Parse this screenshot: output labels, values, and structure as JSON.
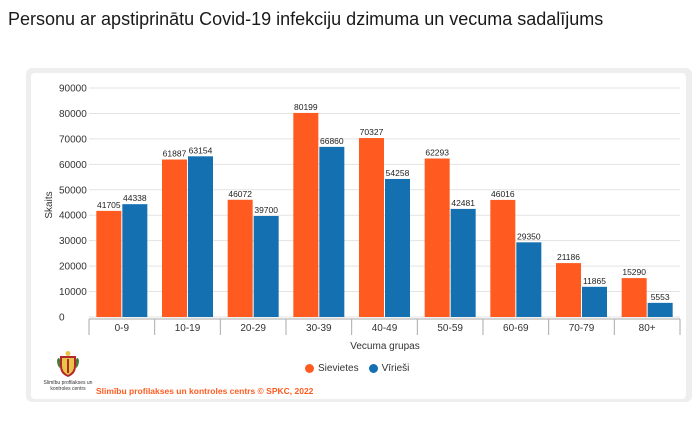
{
  "page": {
    "title": "Personu ar apstiprinātu Covid-19 infekciju dzimuma un vecuma sadalījums"
  },
  "footer": {
    "credit": "Slimību profilakses un kontroles centrs © SPKC, 2022",
    "logo_text": "Slimību profilakses un kontroles centrs",
    "logo_icon": "spkc-coat-of-arms-icon"
  },
  "chart_data": {
    "type": "bar",
    "xlabel": "Vecuma grupas",
    "ylabel": "Skaits",
    "ylim": [
      0,
      90000
    ],
    "yticks": [
      0,
      10000,
      20000,
      30000,
      40000,
      50000,
      60000,
      70000,
      80000,
      90000
    ],
    "grid": true,
    "legend_position": "bottom",
    "categories": [
      "0-9",
      "10-19",
      "20-29",
      "30-39",
      "40-49",
      "50-59",
      "60-69",
      "70-79",
      "80+"
    ],
    "series": [
      {
        "name": "Sievietes",
        "color": "#ff5a1f",
        "values": [
          41705,
          61887,
          46072,
          80199,
          70327,
          62293,
          46016,
          21186,
          15290
        ]
      },
      {
        "name": "Vīrieši",
        "color": "#1470b0",
        "values": [
          44338,
          63154,
          39700,
          66860,
          54258,
          42481,
          29350,
          11865,
          5553
        ]
      }
    ]
  }
}
